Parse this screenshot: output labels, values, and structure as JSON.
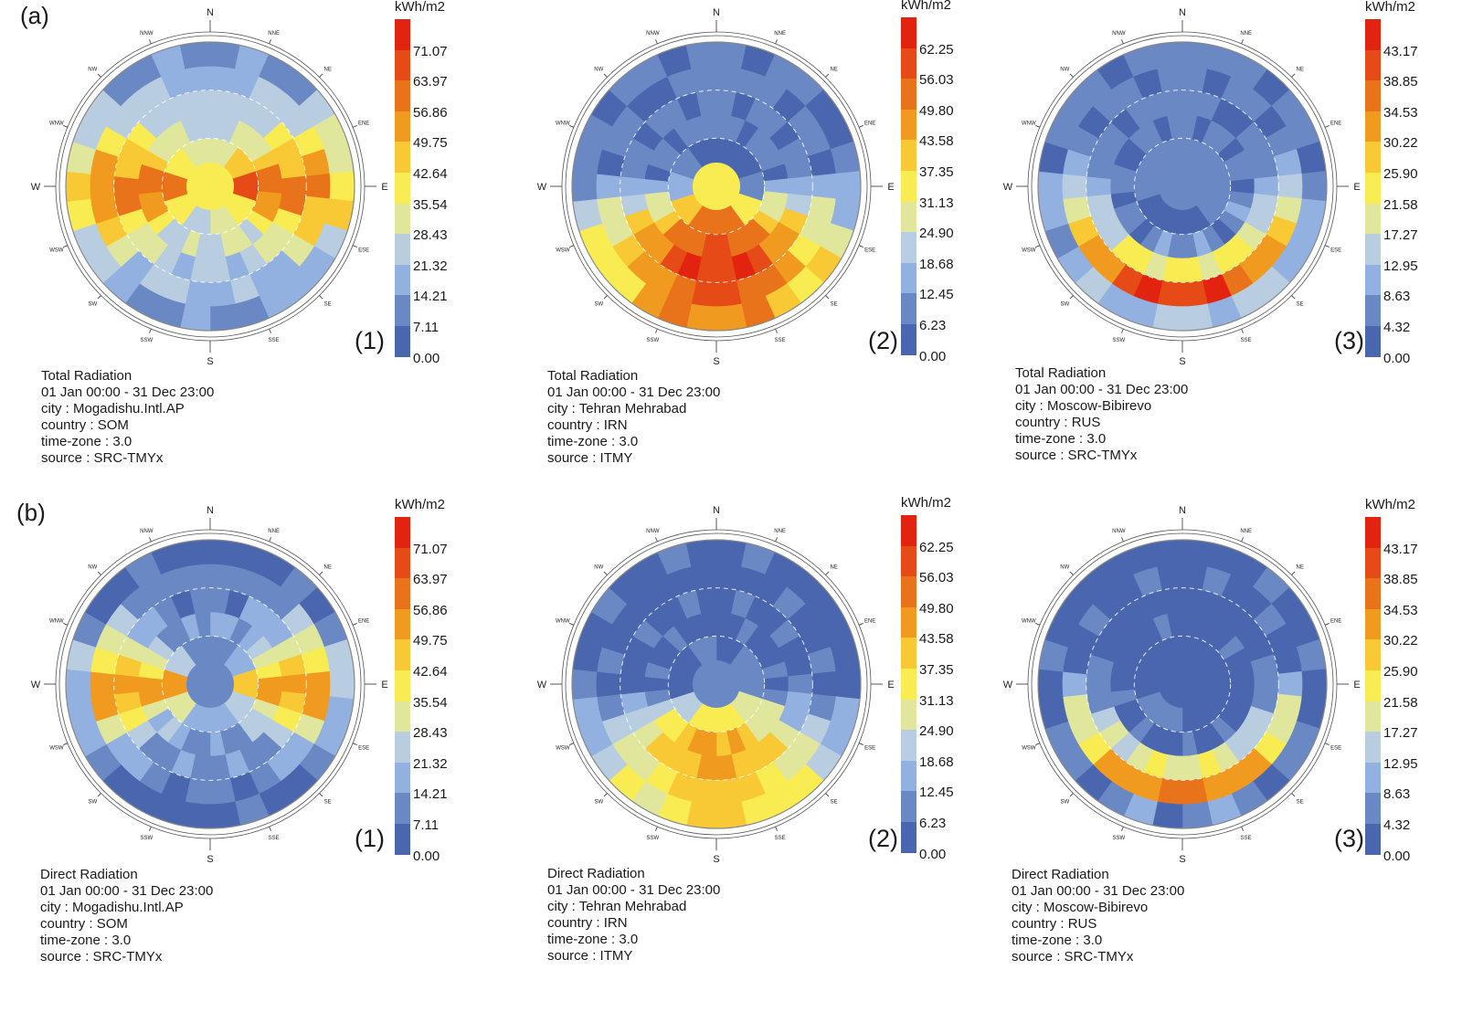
{
  "row_labels": [
    "(a)",
    "(b)"
  ],
  "legend_colors": [
    "#4a66ae",
    "#6a89c4",
    "#93b1e0",
    "#b9cde0",
    "#e0e79c",
    "#f8ec52",
    "#f8c934",
    "#f19a20",
    "#e9731a",
    "#e64a16",
    "#e2230f"
  ],
  "panel_tags": [
    "(1)",
    "(2)",
    "(3)"
  ],
  "direction_labels": [
    "N",
    "NNE",
    "NE",
    "ENE",
    "E",
    "ESE",
    "SE",
    "SSE",
    "S",
    "SSW",
    "SW",
    "WSW",
    "W",
    "WNW",
    "NW",
    "NNW"
  ],
  "chart_data": [
    {
      "type": "heatmap",
      "subtype": "radiation-rose",
      "title": "Total Radiation",
      "period": "01 Jan 00:00 - 31 Dec 23:00",
      "city": "city : Mogadishu.Intl.AP",
      "country": "country : SOM",
      "timezone": "time-zone : 3.0",
      "source": "source : SRC-TMYx",
      "unit": "kWh/m2",
      "range": [
        0,
        78.18
      ],
      "legend_ticks": [
        "71.07",
        "63.97",
        "56.86",
        "49.75",
        "42.64",
        "35.54",
        "28.43",
        "21.32",
        "14.21",
        "7.11",
        "0.00"
      ],
      "tag": "(1)"
    },
    {
      "type": "heatmap",
      "subtype": "radiation-rose",
      "title": "Total Radiation",
      "period": "01 Jan 00:00 - 31 Dec 23:00",
      "city": "city : Tehran Mehrabad",
      "country": "country : IRN",
      "timezone": "time-zone : 3.0",
      "source": "source : ITMY",
      "unit": "kWh/m2",
      "range": [
        0,
        68.48
      ],
      "legend_ticks": [
        "62.25",
        "56.03",
        "49.80",
        "43.58",
        "37.35",
        "31.13",
        "24.90",
        "18.68",
        "12.45",
        "6.23",
        "0.00"
      ],
      "tag": "(2)"
    },
    {
      "type": "heatmap",
      "subtype": "radiation-rose",
      "title": "Total Radiation",
      "period": "01 Jan 00:00 - 31 Dec 23:00",
      "city": "city : Moscow-Bibirevo",
      "country": "country : RUS",
      "timezone": "time-zone : 3.0",
      "source": "source : SRC-TMYx",
      "unit": "kWh/m2",
      "range": [
        0,
        47.49
      ],
      "legend_ticks": [
        "43.17",
        "38.85",
        "34.53",
        "30.22",
        "25.90",
        "21.58",
        "17.27",
        "12.95",
        "8.63",
        "4.32",
        "0.00"
      ],
      "tag": "(3)"
    },
    {
      "type": "heatmap",
      "subtype": "radiation-rose",
      "title": "Direct Radiation",
      "period": "01 Jan 00:00 - 31 Dec 23:00",
      "city": "city : Mogadishu.Intl.AP",
      "country": "country : SOM",
      "timezone": "time-zone : 3.0",
      "source": "source : SRC-TMYx",
      "unit": "kWh/m2",
      "range": [
        0,
        78.18
      ],
      "legend_ticks": [
        "71.07",
        "63.97",
        "56.86",
        "49.75",
        "42.64",
        "35.54",
        "28.43",
        "21.32",
        "14.21",
        "7.11",
        "0.00"
      ],
      "tag": "(1)"
    },
    {
      "type": "heatmap",
      "subtype": "radiation-rose",
      "title": "Direct Radiation",
      "period": "01 Jan 00:00 - 31 Dec 23:00",
      "city": "city : Tehran Mehrabad",
      "country": "country : IRN",
      "timezone": "time-zone : 3.0",
      "source": "source : ITMY",
      "unit": "kWh/m2",
      "range": [
        0,
        68.48
      ],
      "legend_ticks": [
        "62.25",
        "56.03",
        "49.80",
        "43.58",
        "37.35",
        "31.13",
        "24.90",
        "18.68",
        "12.45",
        "6.23",
        "0.00"
      ],
      "tag": "(2)"
    },
    {
      "type": "heatmap",
      "subtype": "radiation-rose",
      "title": "Direct Radiation",
      "period": "01 Jan 00:00 - 31 Dec 23:00",
      "city": "city : Moscow-Bibirevo",
      "country": "country : RUS",
      "timezone": "time-zone : 3.0",
      "source": "source : SRC-TMYx",
      "unit": "kWh/m2",
      "range": [
        0,
        47.49
      ],
      "legend_ticks": [
        "43.17",
        "38.85",
        "34.53",
        "30.22",
        "25.90",
        "21.58",
        "17.27",
        "12.95",
        "8.63",
        "4.32",
        "0.00"
      ],
      "tag": "(3)"
    }
  ]
}
